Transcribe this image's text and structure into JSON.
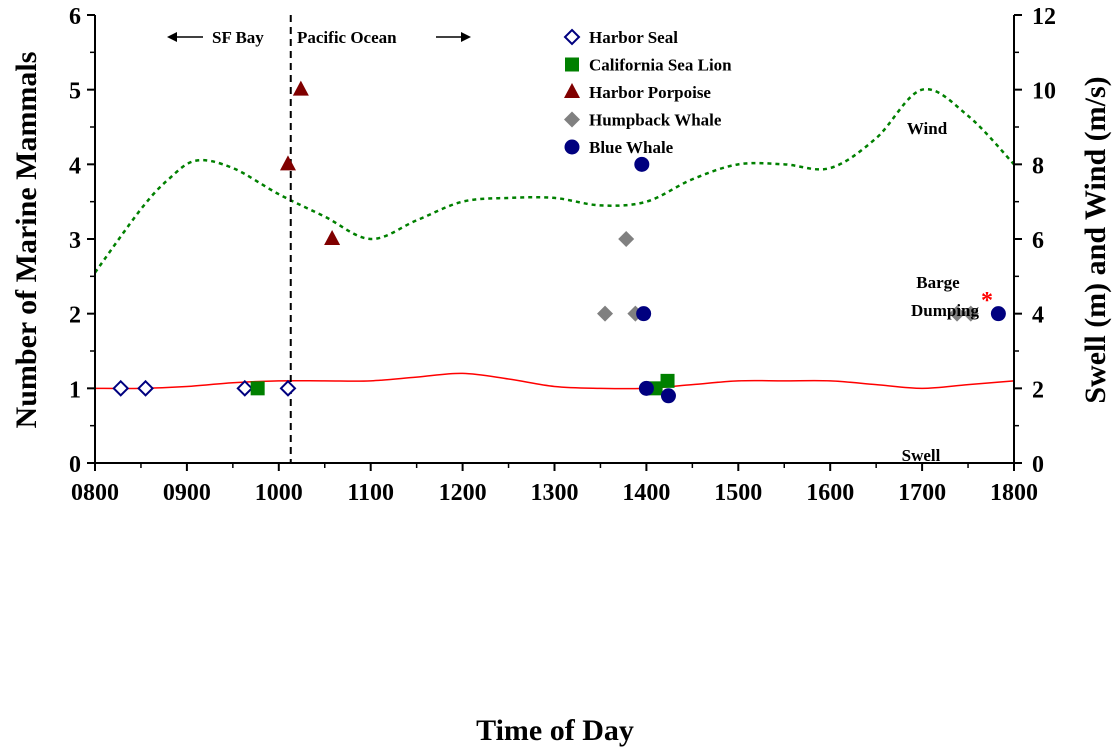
{
  "chart_data": {
    "type": "scatter",
    "xlabel": "Time of Day",
    "ylabel": "Number of Marine Mammals",
    "y2label": "Swell (m) and Wind (m/s)",
    "xlim": [
      800,
      1800
    ],
    "ylim": [
      0,
      6
    ],
    "y2lim": [
      0,
      12
    ],
    "x_ticks": [
      "0800",
      "0900",
      "1000",
      "1100",
      "1200",
      "1300",
      "1400",
      "1500",
      "1600",
      "1700",
      "1800"
    ],
    "y_ticks": [
      "0",
      "1",
      "2",
      "3",
      "4",
      "5",
      "6"
    ],
    "y2_ticks": [
      "0",
      "2",
      "4",
      "6",
      "8",
      "10",
      "12"
    ],
    "grid": false,
    "legend_position": "top-center",
    "series": [
      {
        "name": "Harbor Seal",
        "marker": "diamond-open",
        "color": "#00007f",
        "points": [
          [
            828,
            1
          ],
          [
            855,
            1
          ],
          [
            963,
            1
          ],
          [
            1010,
            1
          ]
        ]
      },
      {
        "name": "California Sea Lion",
        "marker": "square",
        "color": "#008000",
        "points": [
          [
            977,
            1
          ],
          [
            1410,
            1
          ],
          [
            1423,
            1.1
          ]
        ]
      },
      {
        "name": "Harbor Porpoise",
        "marker": "triangle",
        "color": "#800000",
        "points": [
          [
            1010,
            4
          ],
          [
            1024,
            5
          ],
          [
            1058,
            3
          ]
        ]
      },
      {
        "name": "Humpback Whale",
        "marker": "diamond",
        "color": "#808080",
        "points": [
          [
            1355,
            2
          ],
          [
            1378,
            3
          ],
          [
            1388,
            2
          ],
          [
            1738,
            2
          ],
          [
            1753,
            2
          ]
        ]
      },
      {
        "name": "Blue Whale",
        "marker": "circle",
        "color": "#00007f",
        "points": [
          [
            1395,
            4
          ],
          [
            1397,
            2
          ],
          [
            1400,
            1
          ],
          [
            1424,
            0.9
          ],
          [
            1783,
            2
          ]
        ]
      }
    ],
    "lines": [
      {
        "name": "Wind",
        "axis": "right",
        "style": "dotted",
        "color": "#008000",
        "x": [
          800,
          850,
          880,
          910,
          950,
          1000,
          1050,
          1100,
          1150,
          1200,
          1250,
          1300,
          1350,
          1400,
          1450,
          1500,
          1550,
          1600,
          1650,
          1700,
          1750,
          1800
        ],
        "y": [
          5.1,
          6.8,
          7.6,
          8.1,
          7.9,
          7.2,
          6.6,
          6.0,
          6.5,
          7.0,
          7.1,
          7.1,
          6.9,
          7.0,
          7.6,
          8.0,
          8.0,
          7.9,
          8.7,
          10.0,
          9.3,
          8.0
        ]
      },
      {
        "name": "Swell",
        "axis": "right",
        "style": "solid",
        "color": "#ff0000",
        "x": [
          800,
          850,
          900,
          950,
          1000,
          1050,
          1100,
          1150,
          1200,
          1250,
          1300,
          1350,
          1400,
          1450,
          1500,
          1550,
          1600,
          1650,
          1700,
          1750,
          1800
        ],
        "y": [
          2.0,
          2.0,
          2.05,
          2.15,
          2.2,
          2.2,
          2.2,
          2.3,
          2.4,
          2.25,
          2.05,
          2.0,
          2.0,
          2.1,
          2.2,
          2.2,
          2.2,
          2.1,
          2.0,
          2.1,
          2.2
        ]
      }
    ],
    "vline": {
      "x": 1013,
      "style": "dashed",
      "color": "#000000"
    },
    "annotations": [
      {
        "id": "wind",
        "text": "Wind"
      },
      {
        "id": "swell",
        "text": "Swell"
      },
      {
        "id": "barge1",
        "text": "Barge"
      },
      {
        "id": "barge2",
        "text": "Dumping"
      },
      {
        "id": "star",
        "text": "*",
        "color": "#ff0000"
      },
      {
        "id": "sfbay",
        "text": "SF Bay"
      },
      {
        "id": "pacific",
        "text": "Pacific Ocean"
      }
    ]
  }
}
